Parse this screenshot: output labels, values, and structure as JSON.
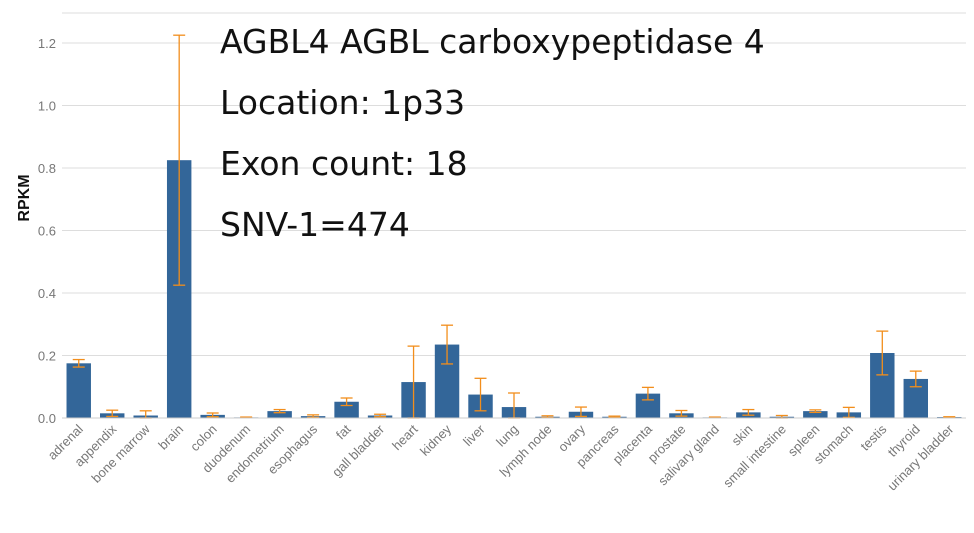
{
  "annotations": {
    "gene": "AGBL4 AGBL carboxypeptidase 4",
    "location": "Location: 1p33",
    "exons": "Exon count: 18",
    "snv": "SNV-1=474"
  },
  "colors": {
    "bar": "#336699",
    "error": "#f28e1c",
    "grid": "#dddddd"
  },
  "chart_data": {
    "type": "bar",
    "ylabel": "RPKM",
    "xlabel": "",
    "ylim": [
      0,
      1.25
    ],
    "yticks": [
      "0.0",
      "0.2",
      "0.4",
      "0.6",
      "0.8",
      "1.0",
      "1.2"
    ],
    "grid": true,
    "categories": [
      "adrenal",
      "appendix",
      "bone marrow",
      "brain",
      "colon",
      "duodenum",
      "endometrium",
      "esophagus",
      "fat",
      "gall bladder",
      "heart",
      "kidney",
      "liver",
      "lung",
      "lymph node",
      "ovary",
      "pancreas",
      "placenta",
      "prostate",
      "salivary gland",
      "skin",
      "small intestine",
      "spleen",
      "stomach",
      "testis",
      "thyroid",
      "urinary bladder"
    ],
    "values": [
      0.175,
      0.015,
      0.008,
      0.825,
      0.01,
      0.002,
      0.022,
      0.006,
      0.052,
      0.008,
      0.115,
      0.235,
      0.075,
      0.035,
      0.004,
      0.02,
      0.004,
      0.078,
      0.015,
      0.002,
      0.018,
      0.004,
      0.022,
      0.018,
      0.208,
      0.125,
      0.003
    ],
    "errors": [
      0.012,
      0.01,
      0.015,
      0.4,
      0.006,
      0.001,
      0.005,
      0.004,
      0.012,
      0.004,
      0.115,
      0.062,
      0.052,
      0.045,
      0.003,
      0.015,
      0.002,
      0.02,
      0.009,
      0.001,
      0.009,
      0.004,
      0.004,
      0.016,
      0.07,
      0.025,
      0.001
    ]
  }
}
